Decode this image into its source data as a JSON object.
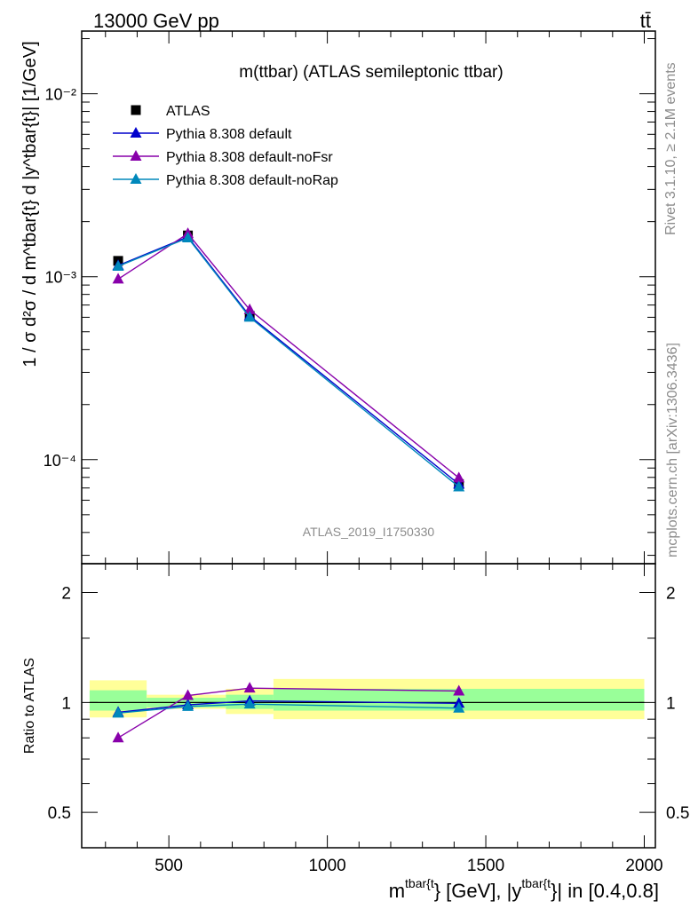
{
  "header": {
    "left": "13000 GeV pp",
    "right": "tt̄"
  },
  "side_text": {
    "top": "Rivet 3.1.10, ≥ 2.1M events",
    "bottom": "mcplots.cern.ch [arXiv:1306.3436]"
  },
  "chart_data": {
    "type": "line",
    "title": "m(ttbar) (ATLAS semileptonic ttbar)",
    "watermark": "ATLAS_2019_I1750330",
    "xlabel": {
      "p1": "m",
      "sup1": "tbar{t",
      "p2": "} [GeV], |y",
      "sup2": "tbar{t",
      "p3": "}| in [0.4,0.8]"
    },
    "ylabel": "1 / σ d²σ / d m^tbar{t} d |y^tbar{t}| [1/GeV]",
    "ylabel_ratio": "Ratio to ATLAS",
    "xlim": [
      225,
      2035
    ],
    "ylim": [
      2.7e-05,
      0.022
    ],
    "yscale": "log",
    "ylim_ratio": [
      0.4,
      2.4
    ],
    "yscale_ratio": "log",
    "x_ticks": [
      "500",
      "1000",
      "1500",
      "2000"
    ],
    "y_ticks": [
      "10⁻²",
      "10⁻³",
      "10⁻⁴"
    ],
    "ratio_ticks": [
      "2",
      "1",
      "0.5"
    ],
    "legend_position": "top-left",
    "band_edges": [
      250,
      430,
      680,
      830,
      2000
    ],
    "band_inner": [
      [
        0.95,
        1.08
      ],
      [
        0.97,
        1.03
      ],
      [
        0.96,
        1.05
      ],
      [
        0.95,
        1.09
      ]
    ],
    "band_outer": [
      [
        0.91,
        1.15
      ],
      [
        0.96,
        1.05
      ],
      [
        0.93,
        1.09
      ],
      [
        0.9,
        1.16
      ]
    ],
    "x": [
      340,
      560,
      755,
      1415
    ],
    "series": [
      {
        "name": "ATLAS",
        "marker": "square",
        "color": "#000000",
        "values": [
          0.00122,
          0.00168,
          0.00061,
          7.35e-05
        ]
      },
      {
        "name": "Pythia 8.308 default",
        "marker": "triangle",
        "color": "#0000cc",
        "values": [
          0.00115,
          0.00165,
          0.00061,
          7.35e-05
        ],
        "ratio": [
          0.94,
          0.985,
          1.01,
          0.995
        ]
      },
      {
        "name": "Pythia 8.308 default-noFsr",
        "marker": "triangle",
        "color": "#8800aa",
        "values": [
          0.00097,
          0.00172,
          0.00066,
          7.95e-05
        ],
        "ratio": [
          0.8,
          1.045,
          1.095,
          1.075
        ]
      },
      {
        "name": "Pythia 8.308 default-noRap",
        "marker": "triangle",
        "color": "#0088bb",
        "values": [
          0.00114,
          0.00163,
          0.0006,
          7.1e-05
        ],
        "ratio": [
          0.935,
          0.975,
          0.99,
          0.965
        ]
      }
    ]
  }
}
